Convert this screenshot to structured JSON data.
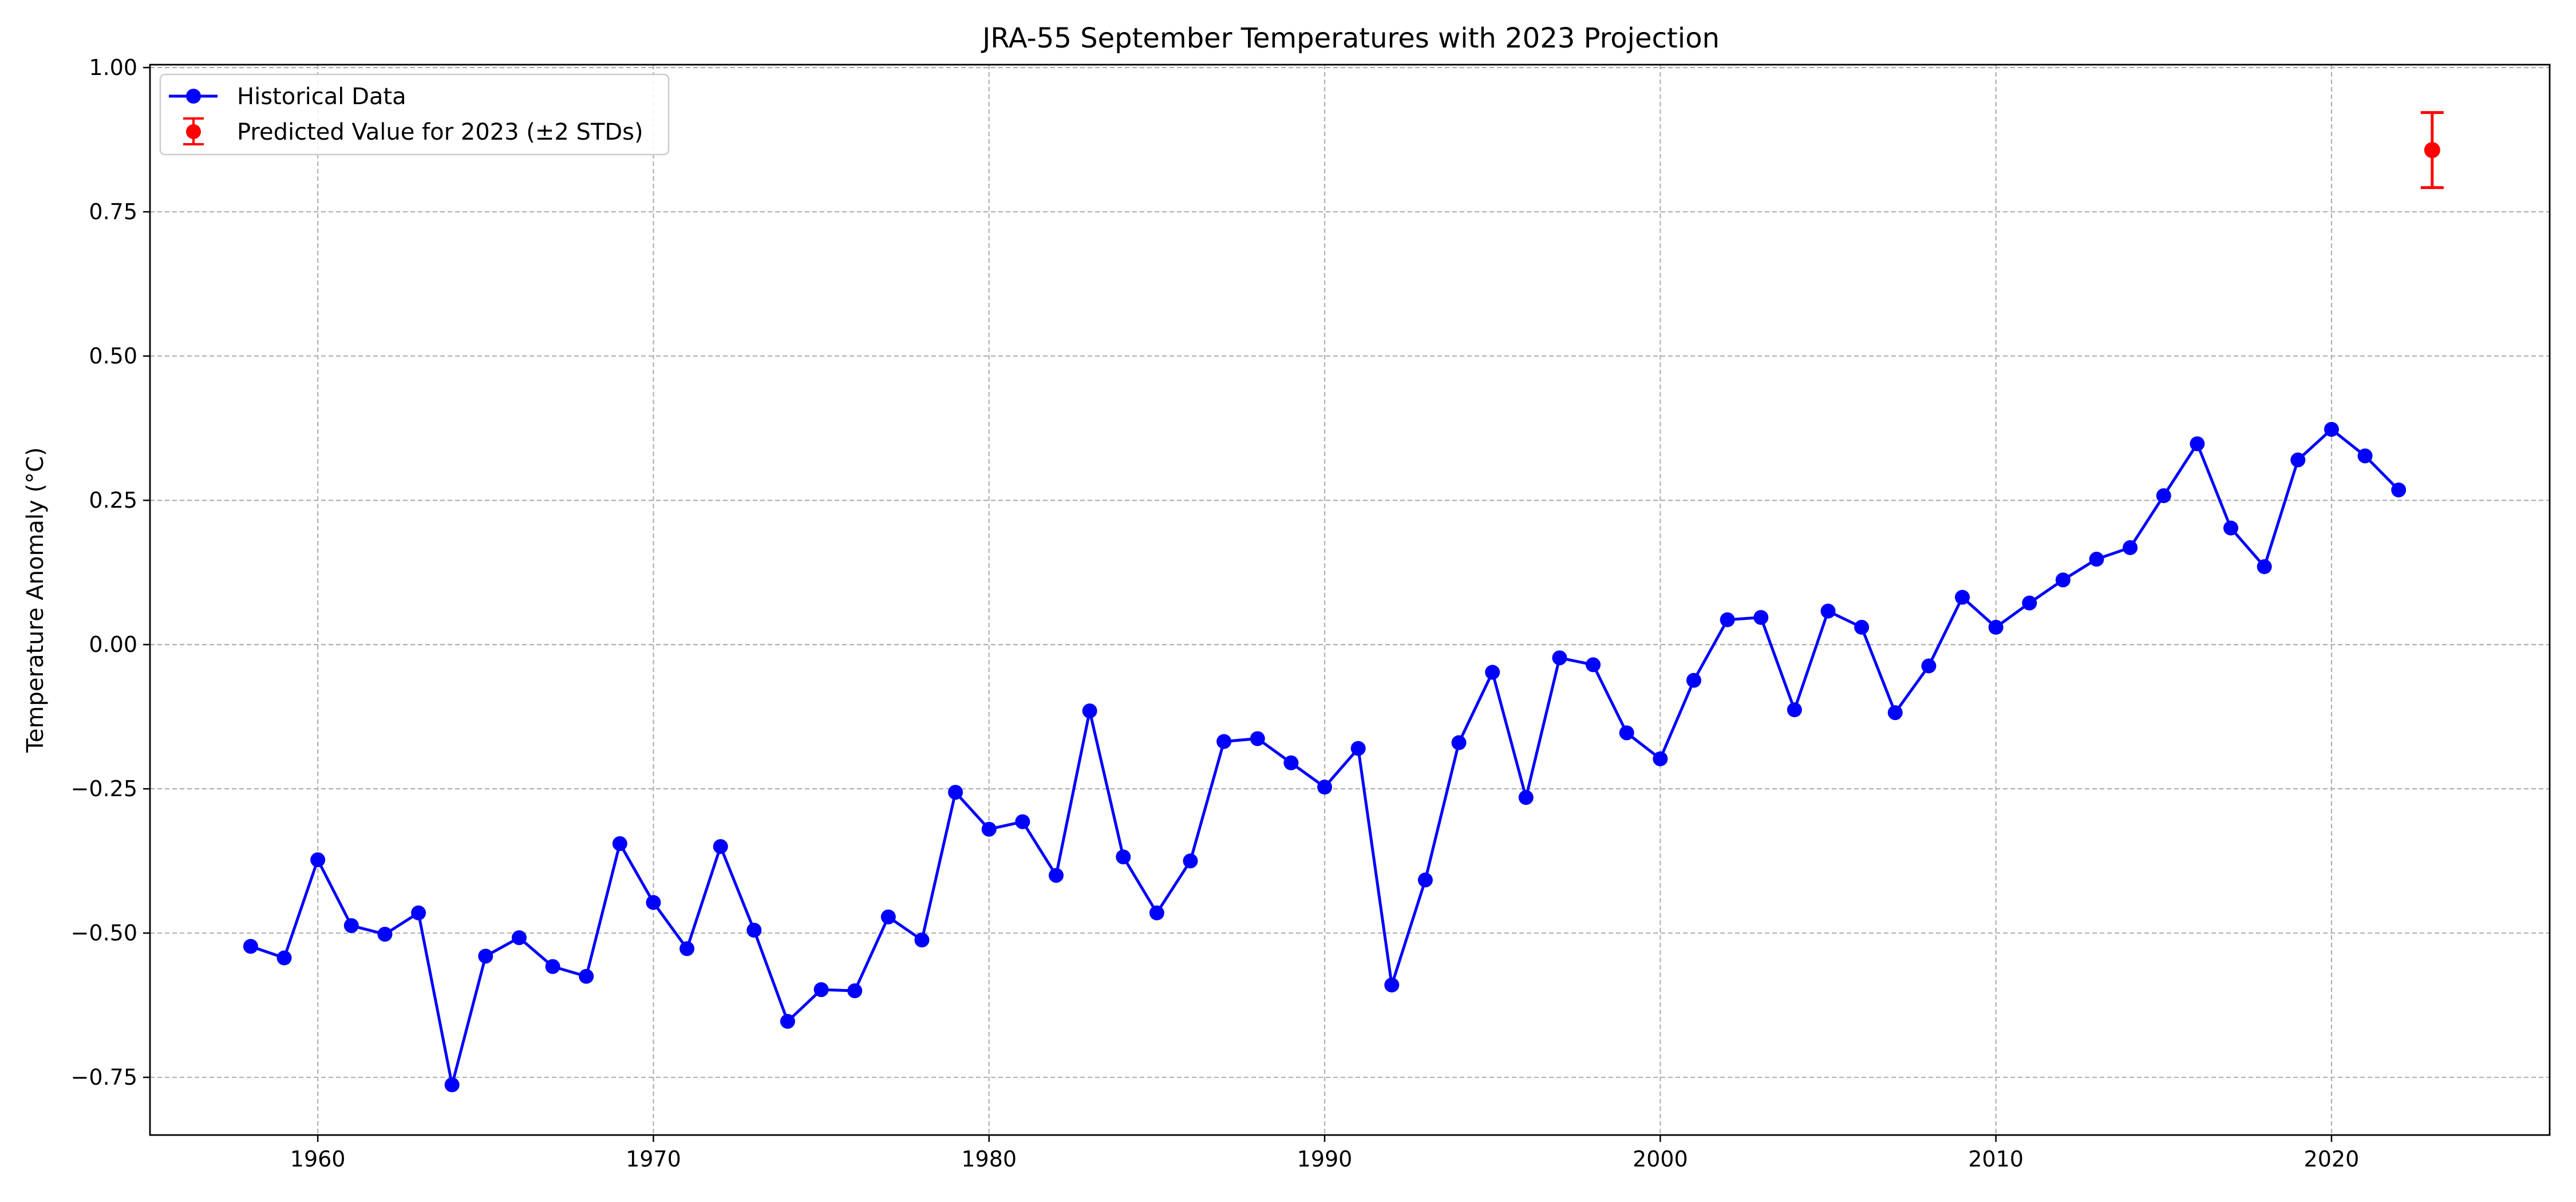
{
  "chart_data": {
    "type": "line",
    "title": "JRA-55 September Temperatures with 2023 Projection",
    "xlabel": "",
    "ylabel": "Temperature Anomaly (°C)",
    "xlim": [
      1955,
      2026.5
    ],
    "ylim": [
      -0.85,
      1.005
    ],
    "grid": true,
    "legend_position": "top-left",
    "xticks": [
      1960,
      1970,
      1980,
      1990,
      2000,
      2010,
      2020
    ],
    "xtick_labels": [
      "1960",
      "1970",
      "1980",
      "1990",
      "2000",
      "2010",
      "2020"
    ],
    "yticks": [
      -0.75,
      -0.5,
      -0.25,
      0.0,
      0.25,
      0.5,
      0.75,
      1.0
    ],
    "ytick_labels": [
      "−0.75",
      "−0.50",
      "−0.25",
      "0.00",
      "0.25",
      "0.50",
      "0.75",
      "1.00"
    ],
    "series": [
      {
        "name": "Historical Data",
        "color": "#0000ff",
        "marker": "circle",
        "x": [
          1958,
          1959,
          1960,
          1961,
          1962,
          1963,
          1964,
          1965,
          1966,
          1967,
          1968,
          1969,
          1970,
          1971,
          1972,
          1973,
          1974,
          1975,
          1976,
          1977,
          1978,
          1979,
          1980,
          1981,
          1982,
          1983,
          1984,
          1985,
          1986,
          1987,
          1988,
          1989,
          1990,
          1991,
          1992,
          1993,
          1994,
          1995,
          1996,
          1997,
          1998,
          1999,
          2000,
          2001,
          2002,
          2003,
          2004,
          2005,
          2006,
          2007,
          2008,
          2009,
          2010,
          2011,
          2012,
          2013,
          2014,
          2015,
          2016,
          2017,
          2018,
          2019,
          2020,
          2021,
          2022
        ],
        "y": [
          -0.523,
          -0.543,
          -0.373,
          -0.487,
          -0.502,
          -0.465,
          -0.763,
          -0.54,
          -0.508,
          -0.558,
          -0.575,
          -0.345,
          -0.447,
          -0.527,
          -0.35,
          -0.495,
          -0.653,
          -0.598,
          -0.6,
          -0.472,
          -0.512,
          -0.256,
          -0.32,
          -0.307,
          -0.4,
          -0.115,
          -0.368,
          -0.465,
          -0.375,
          -0.168,
          -0.163,
          -0.205,
          -0.247,
          -0.18,
          -0.59,
          -0.408,
          -0.17,
          -0.048,
          -0.265,
          -0.023,
          -0.035,
          -0.153,
          -0.198,
          -0.062,
          0.043,
          0.047,
          -0.113,
          0.058,
          0.03,
          -0.118,
          -0.037,
          0.082,
          0.03,
          0.072,
          0.112,
          0.148,
          0.168,
          0.258,
          0.348,
          0.202,
          0.135,
          0.32,
          0.373,
          0.327,
          0.268
        ]
      },
      {
        "name": "Predicted Value for 2023 (±2 STDs)",
        "color": "#ff0000",
        "marker": "circle",
        "x": [
          2023
        ],
        "y": [
          0.857
        ],
        "error_low": [
          0.792
        ],
        "error_high": [
          0.922
        ]
      }
    ]
  }
}
